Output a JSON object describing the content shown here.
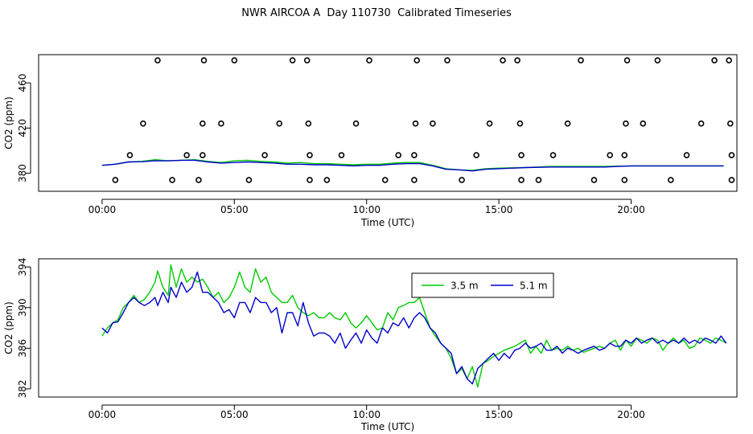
{
  "title": "NWR AIRCOA A  Day 110730  Calibrated Timeseries",
  "chart_data": [
    {
      "type": "scatter",
      "xlabel": "Time (UTC)",
      "ylabel": "CO2 (ppm)",
      "xlim": [
        -2.4,
        24.0
      ],
      "ylim": [
        364,
        485
      ],
      "xticks": [
        "00:00",
        "05:00",
        "10:00",
        "15:00",
        "20:00"
      ],
      "xtick_values": [
        0,
        5,
        10,
        15,
        20
      ],
      "yticks": [
        "380",
        "420",
        "460"
      ],
      "ytick_values": [
        380,
        420,
        460
      ],
      "markers_y": [
        374,
        396,
        424,
        480
      ],
      "markers": [
        {
          "x": 0.5,
          "y": 374
        },
        {
          "x": 2.65,
          "y": 374
        },
        {
          "x": 3.65,
          "y": 374
        },
        {
          "x": 5.55,
          "y": 374
        },
        {
          "x": 7.85,
          "y": 374
        },
        {
          "x": 8.5,
          "y": 374
        },
        {
          "x": 10.7,
          "y": 374
        },
        {
          "x": 11.8,
          "y": 374
        },
        {
          "x": 13.6,
          "y": 374
        },
        {
          "x": 15.85,
          "y": 374
        },
        {
          "x": 16.5,
          "y": 374
        },
        {
          "x": 18.6,
          "y": 374
        },
        {
          "x": 19.75,
          "y": 374
        },
        {
          "x": 21.5,
          "y": 374
        },
        {
          "x": 23.8,
          "y": 374
        },
        {
          "x": 1.05,
          "y": 396
        },
        {
          "x": 3.2,
          "y": 396
        },
        {
          "x": 3.8,
          "y": 396
        },
        {
          "x": 6.15,
          "y": 396
        },
        {
          "x": 7.85,
          "y": 396
        },
        {
          "x": 9.05,
          "y": 396
        },
        {
          "x": 11.2,
          "y": 396
        },
        {
          "x": 11.8,
          "y": 396
        },
        {
          "x": 14.15,
          "y": 396
        },
        {
          "x": 15.85,
          "y": 396
        },
        {
          "x": 17.05,
          "y": 396
        },
        {
          "x": 19.2,
          "y": 396
        },
        {
          "x": 19.75,
          "y": 396
        },
        {
          "x": 22.1,
          "y": 396
        },
        {
          "x": 23.8,
          "y": 396
        },
        {
          "x": 1.55,
          "y": 424
        },
        {
          "x": 3.8,
          "y": 424
        },
        {
          "x": 4.5,
          "y": 424
        },
        {
          "x": 6.7,
          "y": 424
        },
        {
          "x": 7.8,
          "y": 424
        },
        {
          "x": 9.6,
          "y": 424
        },
        {
          "x": 11.85,
          "y": 424
        },
        {
          "x": 12.5,
          "y": 424
        },
        {
          "x": 14.65,
          "y": 424
        },
        {
          "x": 15.8,
          "y": 424
        },
        {
          "x": 17.6,
          "y": 424
        },
        {
          "x": 19.8,
          "y": 424
        },
        {
          "x": 20.45,
          "y": 424
        },
        {
          "x": 22.65,
          "y": 424
        },
        {
          "x": 23.75,
          "y": 424
        },
        {
          "x": 2.1,
          "y": 480
        },
        {
          "x": 3.85,
          "y": 480
        },
        {
          "x": 5.0,
          "y": 480
        },
        {
          "x": 7.2,
          "y": 480
        },
        {
          "x": 7.75,
          "y": 480
        },
        {
          "x": 10.1,
          "y": 480
        },
        {
          "x": 11.9,
          "y": 480
        },
        {
          "x": 13.05,
          "y": 480
        },
        {
          "x": 15.15,
          "y": 480
        },
        {
          "x": 15.7,
          "y": 480
        },
        {
          "x": 18.1,
          "y": 480
        },
        {
          "x": 19.85,
          "y": 480
        },
        {
          "x": 21.0,
          "y": 480
        },
        {
          "x": 23.15,
          "y": 480
        },
        {
          "x": 23.7,
          "y": 480
        }
      ],
      "series": [
        {
          "name": "3.5 m",
          "color": "#00cc00",
          "x": [
            0,
            0.5,
            1,
            1.5,
            2,
            2.5,
            3,
            3.5,
            4,
            4.5,
            5,
            5.5,
            6,
            6.5,
            7,
            7.5,
            8,
            8.5,
            9,
            9.5,
            10,
            10.5,
            11,
            11.5,
            12,
            12.5,
            13,
            13.5,
            14,
            14.5,
            15,
            16,
            17,
            18,
            19,
            20,
            21,
            22,
            23,
            23.5
          ],
          "y": [
            387,
            388,
            390,
            390.5,
            392,
            391,
            391.5,
            392,
            390.5,
            389.5,
            391,
            391.5,
            390.5,
            390,
            389,
            389.5,
            388.5,
            388.5,
            388,
            387.5,
            388,
            388,
            389,
            389.5,
            389.5,
            387,
            384,
            383,
            382.5,
            384,
            384.5,
            385,
            386,
            386,
            386,
            386.5,
            386.5,
            386.5,
            386.5,
            386.5
          ]
        },
        {
          "name": "5.1 m",
          "color": "#0000cc",
          "x": [
            0,
            0.5,
            1,
            1.5,
            2,
            2.5,
            3,
            3.5,
            4,
            4.5,
            5,
            5.5,
            6,
            6.5,
            7,
            7.5,
            8,
            8.5,
            9,
            9.5,
            10,
            10.5,
            11,
            11.5,
            12,
            12.5,
            13,
            13.5,
            14,
            14.5,
            15,
            16,
            17,
            18,
            19,
            20,
            21,
            22,
            23,
            23.5
          ],
          "y": [
            387,
            388,
            390,
            390.2,
            391,
            391,
            391.5,
            391.5,
            390,
            389,
            389.5,
            390,
            389.5,
            389,
            388,
            388,
            387.5,
            387.5,
            387,
            386.5,
            387,
            387,
            388,
            388.5,
            388.5,
            386.5,
            383.5,
            383,
            382,
            383.5,
            384,
            385,
            385.5,
            385.5,
            385.5,
            386.5,
            386.5,
            386.5,
            386.5,
            386.5
          ]
        }
      ]
    },
    {
      "type": "line",
      "xlabel": "Time (UTC)",
      "ylabel": "CO2 (ppm)",
      "xlim": [
        -2.4,
        24.0
      ],
      "ylim": [
        381.2,
        394.8
      ],
      "xticks": [
        "00:00",
        "05:00",
        "10:00",
        "15:00",
        "20:00"
      ],
      "xtick_values": [
        0,
        5,
        10,
        15,
        20
      ],
      "yticks": [
        "382",
        "386",
        "390",
        "394"
      ],
      "ytick_values": [
        382,
        386,
        390,
        394
      ],
      "legend": {
        "position": "top-center",
        "entries": [
          "3.5 m",
          "5.1 m"
        ]
      },
      "series": [
        {
          "name": "3.5 m",
          "color": "#00cc00",
          "x": [
            0.0,
            0.2,
            0.4,
            0.6,
            0.8,
            1.0,
            1.2,
            1.4,
            1.6,
            1.8,
            2.0,
            2.1,
            2.3,
            2.5,
            2.6,
            2.8,
            3.0,
            3.2,
            3.4,
            3.6,
            3.8,
            4.0,
            4.2,
            4.4,
            4.6,
            4.8,
            5.0,
            5.2,
            5.4,
            5.6,
            5.8,
            6.0,
            6.2,
            6.4,
            6.6,
            6.8,
            7.0,
            7.2,
            7.4,
            7.6,
            7.8,
            8.0,
            8.2,
            8.4,
            8.6,
            8.8,
            9.0,
            9.2,
            9.4,
            9.6,
            9.8,
            10.0,
            10.2,
            10.4,
            10.6,
            10.8,
            11.0,
            11.2,
            11.4,
            11.6,
            11.8,
            12.0,
            12.2,
            12.4,
            12.6,
            12.8,
            13.0,
            13.2,
            13.4,
            13.6,
            13.8,
            14.0,
            14.2,
            14.4,
            14.6,
            14.8,
            15.0,
            15.2,
            15.4,
            15.6,
            15.8,
            16.0,
            16.2,
            16.4,
            16.6,
            16.8,
            17.0,
            17.2,
            17.4,
            17.6,
            17.8,
            18.0,
            18.2,
            18.4,
            18.6,
            18.8,
            19.0,
            19.2,
            19.4,
            19.6,
            19.8,
            20.0,
            20.2,
            20.4,
            20.6,
            20.8,
            21.0,
            21.2,
            21.4,
            21.6,
            21.8,
            22.0,
            22.2,
            22.4,
            22.6,
            22.8,
            23.0,
            23.2,
            23.4,
            23.6
          ],
          "y": [
            387.2,
            388.0,
            388.5,
            388.8,
            390.0,
            390.5,
            391.2,
            390.5,
            390.8,
            391.5,
            392.5,
            393.6,
            392.0,
            391.2,
            394.2,
            392.0,
            393.8,
            392.5,
            393.0,
            392.5,
            392.8,
            392.0,
            391.0,
            391.5,
            390.5,
            391.0,
            392.0,
            393.5,
            392.0,
            391.5,
            393.8,
            392.5,
            393.0,
            391.5,
            391.0,
            390.5,
            390.5,
            391.2,
            390.0,
            389.5,
            389.2,
            389.5,
            389.0,
            389.0,
            389.5,
            389.0,
            388.8,
            389.5,
            388.5,
            388.0,
            388.5,
            389.2,
            388.5,
            387.8,
            388.0,
            389.5,
            388.8,
            390.0,
            390.2,
            390.5,
            390.5,
            391.0,
            389.5,
            388.0,
            387.2,
            386.5,
            386.0,
            385.0,
            383.5,
            384.0,
            383.0,
            384.2,
            382.2,
            384.5,
            384.8,
            385.2,
            385.5,
            385.8,
            386.0,
            386.2,
            386.5,
            386.8,
            385.5,
            386.2,
            385.5,
            386.8,
            385.8,
            386.0,
            385.8,
            386.2,
            385.8,
            386.0,
            385.6,
            385.8,
            386.0,
            386.2,
            386.0,
            386.5,
            386.8,
            385.8,
            386.8,
            386.2,
            387.0,
            386.8,
            386.5,
            387.0,
            386.8,
            385.8,
            386.5,
            387.0,
            386.5,
            386.8,
            386.0,
            386.2,
            387.0,
            386.8,
            386.5,
            387.0,
            386.8,
            386.5
          ]
        },
        {
          "name": "5.1 m",
          "color": "#0000cc",
          "x": [
            0.0,
            0.2,
            0.4,
            0.6,
            0.8,
            1.0,
            1.2,
            1.4,
            1.6,
            1.8,
            2.0,
            2.1,
            2.3,
            2.5,
            2.6,
            2.8,
            3.0,
            3.2,
            3.4,
            3.6,
            3.8,
            4.0,
            4.2,
            4.4,
            4.6,
            4.8,
            5.0,
            5.2,
            5.4,
            5.6,
            5.8,
            6.0,
            6.2,
            6.4,
            6.6,
            6.8,
            7.0,
            7.2,
            7.4,
            7.6,
            7.8,
            8.0,
            8.2,
            8.4,
            8.6,
            8.8,
            9.0,
            9.2,
            9.4,
            9.6,
            9.8,
            10.0,
            10.2,
            10.4,
            10.6,
            10.8,
            11.0,
            11.2,
            11.4,
            11.6,
            11.8,
            12.0,
            12.2,
            12.4,
            12.6,
            12.8,
            13.0,
            13.2,
            13.4,
            13.6,
            13.8,
            14.0,
            14.2,
            14.4,
            14.6,
            14.8,
            15.0,
            15.2,
            15.4,
            15.6,
            15.8,
            16.0,
            16.2,
            16.4,
            16.6,
            16.8,
            17.0,
            17.2,
            17.4,
            17.6,
            17.8,
            18.0,
            18.2,
            18.4,
            18.6,
            18.8,
            19.0,
            19.2,
            19.4,
            19.6,
            19.8,
            20.0,
            20.2,
            20.4,
            20.6,
            20.8,
            21.0,
            21.2,
            21.4,
            21.6,
            21.8,
            22.0,
            22.2,
            22.4,
            22.6,
            22.8,
            23.0,
            23.2,
            23.4,
            23.6
          ],
          "y": [
            388.0,
            387.5,
            388.5,
            388.6,
            389.5,
            390.5,
            391.0,
            390.5,
            390.2,
            390.5,
            391.0,
            390.2,
            391.5,
            390.5,
            392.0,
            391.0,
            392.5,
            391.5,
            392.0,
            393.5,
            391.5,
            391.5,
            391.0,
            390.5,
            389.5,
            389.8,
            389.0,
            390.5,
            390.5,
            389.5,
            391.0,
            390.5,
            390.5,
            389.5,
            390.0,
            387.5,
            389.5,
            389.5,
            388.2,
            390.5,
            388.5,
            387.2,
            387.5,
            387.5,
            387.2,
            386.5,
            387.5,
            386.0,
            386.8,
            387.5,
            386.5,
            387.8,
            387.0,
            386.5,
            388.0,
            387.5,
            388.5,
            388.2,
            389.0,
            388.0,
            389.0,
            389.5,
            389.0,
            388.0,
            387.5,
            386.5,
            386.0,
            385.5,
            383.5,
            384.2,
            383.0,
            382.5,
            384.0,
            384.5,
            385.0,
            385.5,
            384.8,
            385.5,
            385.0,
            385.8,
            386.0,
            386.5,
            386.0,
            386.2,
            386.5,
            385.8,
            385.8,
            386.2,
            385.5,
            386.0,
            385.8,
            385.5,
            385.8,
            386.0,
            386.2,
            385.8,
            386.0,
            386.5,
            386.2,
            386.2,
            386.8,
            386.5,
            387.0,
            386.5,
            386.8,
            387.0,
            386.5,
            386.8,
            386.5,
            386.8,
            386.5,
            387.0,
            386.5,
            386.8,
            386.5,
            387.0,
            386.8,
            386.5,
            387.2,
            386.5
          ]
        }
      ]
    }
  ]
}
